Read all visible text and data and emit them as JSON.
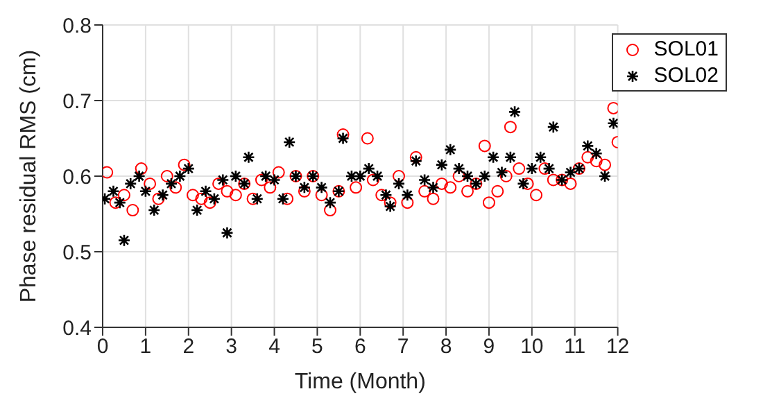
{
  "chart_data": {
    "type": "scatter",
    "xlabel": "Time (Month)",
    "ylabel": "Phase residual RMS (cm)",
    "xlim": [
      0,
      12
    ],
    "xticks": [
      0,
      1,
      2,
      3,
      4,
      5,
      6,
      7,
      8,
      9,
      10,
      11,
      12
    ],
    "ylim": [
      0.4,
      0.8
    ],
    "yticks": [
      0.4,
      0.5,
      0.6,
      0.7,
      0.8
    ],
    "grid": true,
    "legend": "top right",
    "series": [
      {
        "name": "SOL01",
        "color": "#ff0000",
        "marker": "circle",
        "x": [
          0.1,
          0.3,
          0.5,
          0.7,
          0.9,
          1.1,
          1.3,
          1.5,
          1.7,
          1.9,
          2.1,
          2.3,
          2.5,
          2.7,
          2.9,
          3.1,
          3.3,
          3.5,
          3.7,
          3.9,
          4.1,
          4.3,
          4.5,
          4.7,
          4.9,
          5.1,
          5.3,
          5.5,
          5.6,
          5.9,
          6.17,
          6.3,
          6.5,
          6.7,
          6.9,
          7.1,
          7.3,
          7.5,
          7.7,
          7.9,
          8.1,
          8.3,
          8.5,
          8.7,
          8.9,
          9.0,
          9.2,
          9.4,
          9.5,
          9.7,
          9.9,
          10.1,
          10.3,
          10.5,
          10.7,
          10.9,
          11.1,
          11.3,
          11.5,
          11.7,
          11.9,
          12.0
        ],
        "values": [
          0.605,
          0.565,
          0.575,
          0.555,
          0.61,
          0.59,
          0.57,
          0.6,
          0.585,
          0.615,
          0.575,
          0.57,
          0.565,
          0.59,
          0.58,
          0.575,
          0.59,
          0.57,
          0.595,
          0.585,
          0.605,
          0.57,
          0.6,
          0.58,
          0.6,
          0.575,
          0.555,
          0.58,
          0.655,
          0.585,
          0.65,
          0.595,
          0.575,
          0.565,
          0.6,
          0.565,
          0.625,
          0.58,
          0.57,
          0.59,
          0.585,
          0.6,
          0.58,
          0.59,
          0.64,
          0.565,
          0.58,
          0.6,
          0.665,
          0.61,
          0.59,
          0.575,
          0.61,
          0.595,
          0.595,
          0.59,
          0.61,
          0.625,
          0.62,
          0.615,
          0.69,
          0.645
        ]
      },
      {
        "name": "SOL02",
        "color": "#000000",
        "marker": "cross",
        "x": [
          0.05,
          0.25,
          0.4,
          0.5,
          0.65,
          0.85,
          1.0,
          1.2,
          1.4,
          1.6,
          1.8,
          2.0,
          2.2,
          2.4,
          2.6,
          2.8,
          2.9,
          3.1,
          3.3,
          3.4,
          3.6,
          3.8,
          4.0,
          4.2,
          4.35,
          4.5,
          4.7,
          4.9,
          5.1,
          5.3,
          5.5,
          5.6,
          5.8,
          6.0,
          6.2,
          6.4,
          6.6,
          6.7,
          6.9,
          7.1,
          7.3,
          7.5,
          7.7,
          7.9,
          8.1,
          8.3,
          8.5,
          8.7,
          8.9,
          9.1,
          9.3,
          9.5,
          9.6,
          9.8,
          10.0,
          10.2,
          10.4,
          10.5,
          10.7,
          10.9,
          11.1,
          11.3,
          11.5,
          11.7,
          11.9
        ],
        "values": [
          0.57,
          0.58,
          0.565,
          0.515,
          0.59,
          0.6,
          0.58,
          0.555,
          0.575,
          0.59,
          0.6,
          0.61,
          0.555,
          0.58,
          0.57,
          0.595,
          0.525,
          0.6,
          0.59,
          0.625,
          0.57,
          0.6,
          0.595,
          0.57,
          0.645,
          0.6,
          0.585,
          0.6,
          0.585,
          0.565,
          0.58,
          0.65,
          0.6,
          0.6,
          0.61,
          0.6,
          0.575,
          0.56,
          0.59,
          0.575,
          0.62,
          0.595,
          0.585,
          0.615,
          0.635,
          0.61,
          0.6,
          0.59,
          0.6,
          0.625,
          0.605,
          0.625,
          0.685,
          0.59,
          0.61,
          0.625,
          0.61,
          0.665,
          0.595,
          0.605,
          0.61,
          0.64,
          0.63,
          0.6,
          0.67
        ]
      }
    ]
  }
}
